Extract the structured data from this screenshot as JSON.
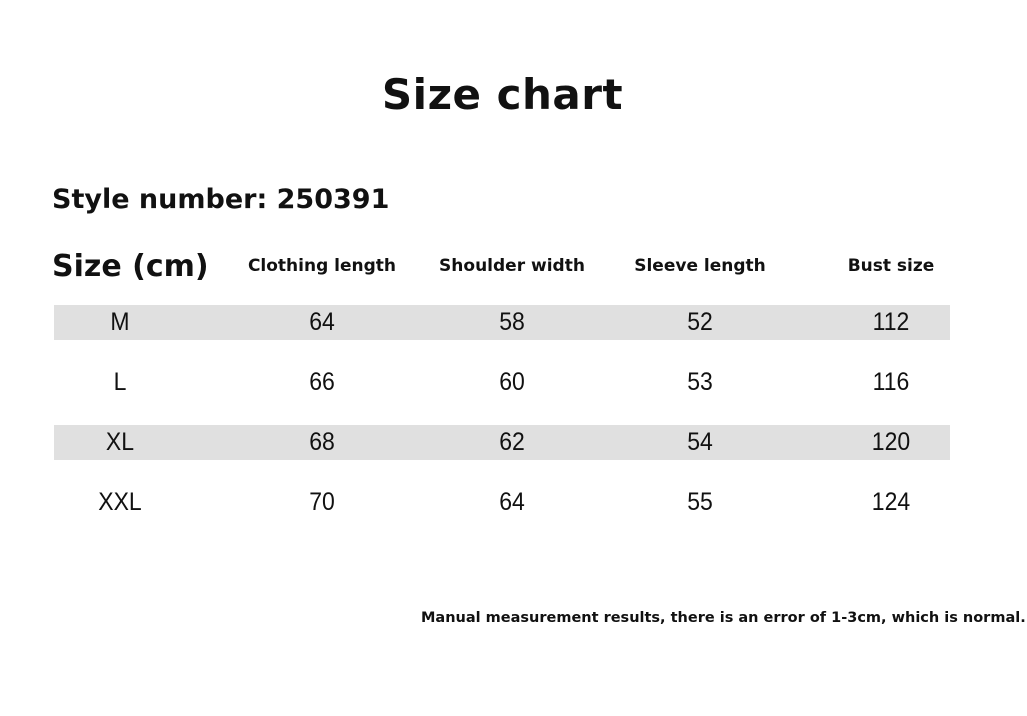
{
  "title": "Size chart",
  "style_number": "Style number: 250391",
  "headers": [
    "Size (cm)",
    "Clothing length",
    "Shoulder width",
    "Sleeve length",
    "Bust size"
  ],
  "rows": [
    [
      "M",
      "64",
      "58",
      "52",
      "112"
    ],
    [
      "L",
      "66",
      "60",
      "53",
      "116"
    ],
    [
      "XL",
      "68",
      "62",
      "54",
      "120"
    ],
    [
      "XXL",
      "70",
      "64",
      "55",
      "124"
    ]
  ],
  "note": "Manual measurement results, there is an error of 1-3cm, which is normal.",
  "colors": {
    "band": "#e0e0e0",
    "text": "#111111"
  }
}
